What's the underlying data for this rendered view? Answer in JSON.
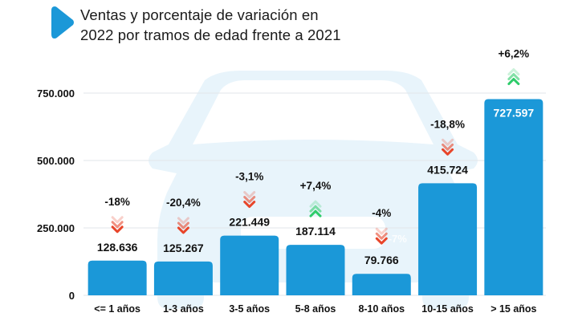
{
  "title": {
    "line1": "Ventas y porcentaje de variación en",
    "line2": "2022 por tramos de edad frente a 2021",
    "icon": "play-triangle-icon"
  },
  "colors": {
    "bar": "#1b98d8",
    "down_arrow": "#e8452a",
    "up_arrow": "#2ecc6a",
    "gridline": "#e2e6ea",
    "watermark": "#e8f4fb",
    "title_icon": "#1b98d8"
  },
  "watermark": {
    "icon": "car-front-icon"
  },
  "chart_data": {
    "type": "bar",
    "title": "Ventas y porcentaje de variación en 2022 por tramos de edad frente a 2021",
    "xlabel": "",
    "ylabel": "",
    "categories": [
      "<= 1 años",
      "1-3 años",
      "3-5 años",
      "5-8 años",
      "8-10 años",
      "10-15 años",
      "> 15 años"
    ],
    "values": [
      128636,
      125267,
      221449,
      187114,
      79766,
      415724,
      727597
    ],
    "value_labels": [
      "128.636",
      "125.267",
      "221.449",
      "187.114",
      "79.766",
      "415.724",
      "727.597"
    ],
    "variation_labels": [
      "-18%",
      "-20,4%",
      "-3,1%",
      "+7,4%",
      "-4%",
      "-18,8%",
      "+6,2%"
    ],
    "variation_pct": [
      -18,
      -20.4,
      -3.1,
      7.4,
      -4,
      -18.8,
      6.2
    ],
    "variation_direction": [
      "down",
      "down",
      "down",
      "up",
      "down",
      "down",
      "up"
    ],
    "ghost_annotation": "-7%",
    "ylim": [
      0,
      750000
    ],
    "yticks": [
      0,
      250000,
      500000,
      750000
    ],
    "ytick_labels": [
      "0",
      "250.000",
      "500.000",
      "750.000"
    ],
    "grid": true,
    "legend": "none"
  }
}
